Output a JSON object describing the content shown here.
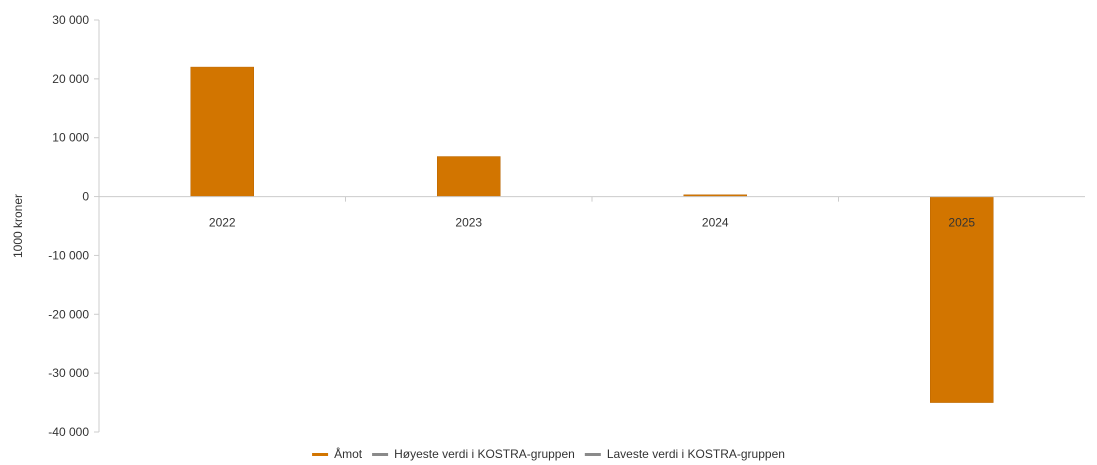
{
  "chart_data": {
    "type": "bar",
    "ylabel": "1000 kroner",
    "categories": [
      "2022",
      "2023",
      "2024",
      "2025"
    ],
    "series": [
      {
        "name": "Åmot",
        "values": [
          22000,
          6800,
          300,
          -35000
        ],
        "color": "#d27500"
      }
    ],
    "ylim": [
      -40000,
      30000
    ],
    "yticks": [
      30000,
      20000,
      10000,
      0,
      -10000,
      -20000,
      -30000,
      -40000
    ],
    "ytick_labels": [
      "30 000",
      "20 000",
      "10 000",
      "0",
      "-10 000",
      "-20 000",
      "-30 000",
      "-40 000"
    ],
    "legend": [
      {
        "name": "Åmot",
        "color": "#d27500"
      },
      {
        "name": "Høyeste verdi i KOSTRA-gruppen",
        "color": "#8a8a8a"
      },
      {
        "name": "Laveste verdi i KOSTRA-gruppen",
        "color": "#8a8a8a"
      }
    ],
    "legend_position": "bottom",
    "grid": false
  }
}
